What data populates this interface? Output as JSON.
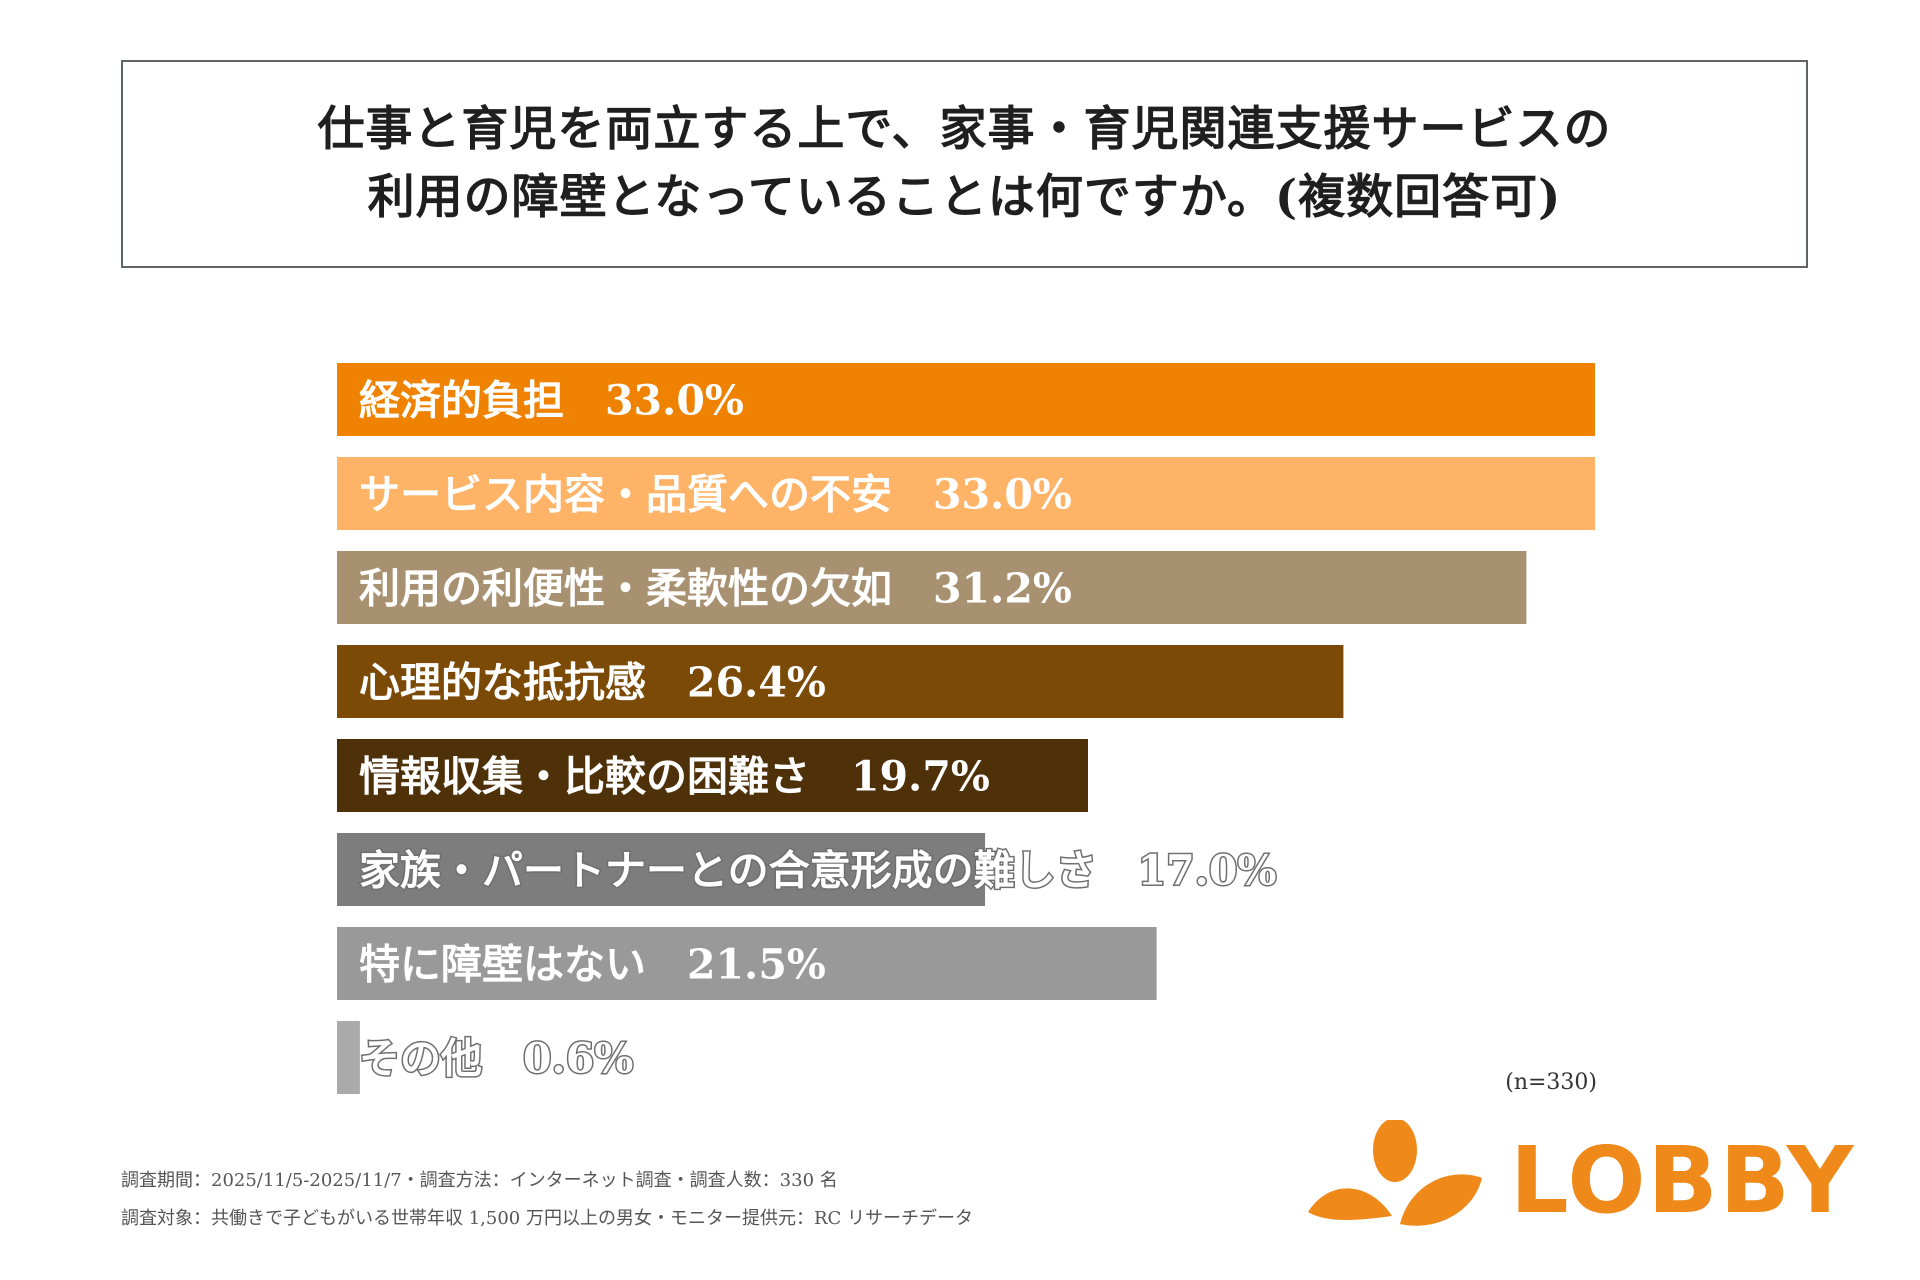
{
  "title": {
    "line1": "仕事と育児を両立する上で、家事・育児関連支援サービスの",
    "line2": "利用の障壁となっていることは何ですか。(複数回答可)"
  },
  "chart_data": {
    "type": "bar",
    "orientation": "horizontal",
    "categories": [
      "経済的負担",
      "サービス内容・品質への不安",
      "利用の利便性・柔軟性の欠如",
      "心理的な抵抗感",
      "情報収集・比較の困難さ",
      "家族・パートナーとの合意形成の難しさ",
      "特に障壁はない",
      "その他"
    ],
    "values": [
      33.0,
      33.0,
      31.2,
      26.4,
      19.7,
      17.0,
      21.5,
      0.6
    ],
    "value_labels": [
      "33.0%",
      "33.0%",
      "31.2%",
      "26.4%",
      "19.7%",
      "17.0%",
      "21.5%",
      "0.6%"
    ],
    "colors": [
      "#ef8200",
      "#ffb366",
      "#a89171",
      "#7b4a06",
      "#4e3109",
      "#7d7d7d",
      "#999999",
      "#aaaaaa"
    ],
    "xlim": [
      0,
      33
    ],
    "unit": "%"
  },
  "sample_note": "(n=330)",
  "footer": {
    "line1": "調査期間：2025/11/5-2025/11/7・調査方法：インターネット調査・調査人数：330 名",
    "line2": "調査対象：共働きで子どもがいる世帯年収 1,500 万円以上の男女・モニター提供元：RC リサーチデータ"
  },
  "logo": {
    "text": "LOBBY",
    "color": "#ef8a1a"
  }
}
